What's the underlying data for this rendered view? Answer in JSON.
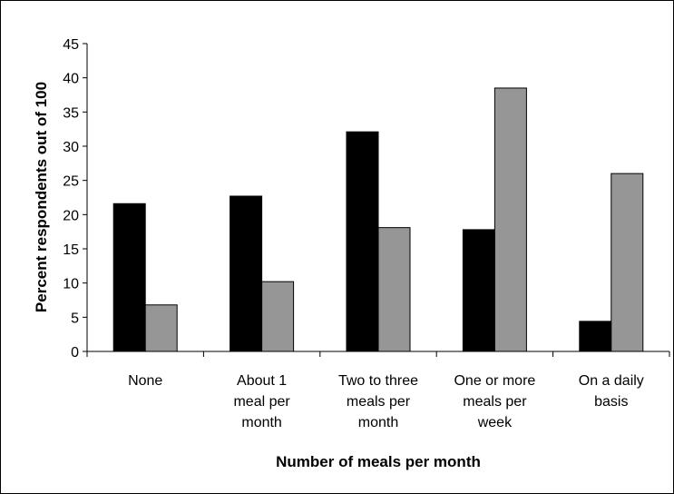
{
  "chart_data": {
    "type": "bar",
    "categories": [
      [
        "None"
      ],
      [
        "About 1",
        "meal per",
        "month"
      ],
      [
        "Two to three",
        "meals per",
        "month"
      ],
      [
        "One or more",
        "meals per",
        "week"
      ],
      [
        "On a daily",
        "basis"
      ]
    ],
    "series": [
      {
        "values": [
          21.6,
          22.7,
          32.1,
          17.8,
          4.4
        ],
        "color": "#000000"
      },
      {
        "values": [
          6.8,
          10.2,
          18.1,
          38.5,
          26.0
        ],
        "color": "#969696"
      }
    ],
    "ylabel": "Percent respondents out of 100",
    "xlabel": "Number of meals per month",
    "ylim": [
      0,
      45
    ],
    "yticks": [
      0,
      5,
      10,
      15,
      20,
      25,
      30,
      35,
      40,
      45
    ],
    "grid": false,
    "legend": "none"
  }
}
